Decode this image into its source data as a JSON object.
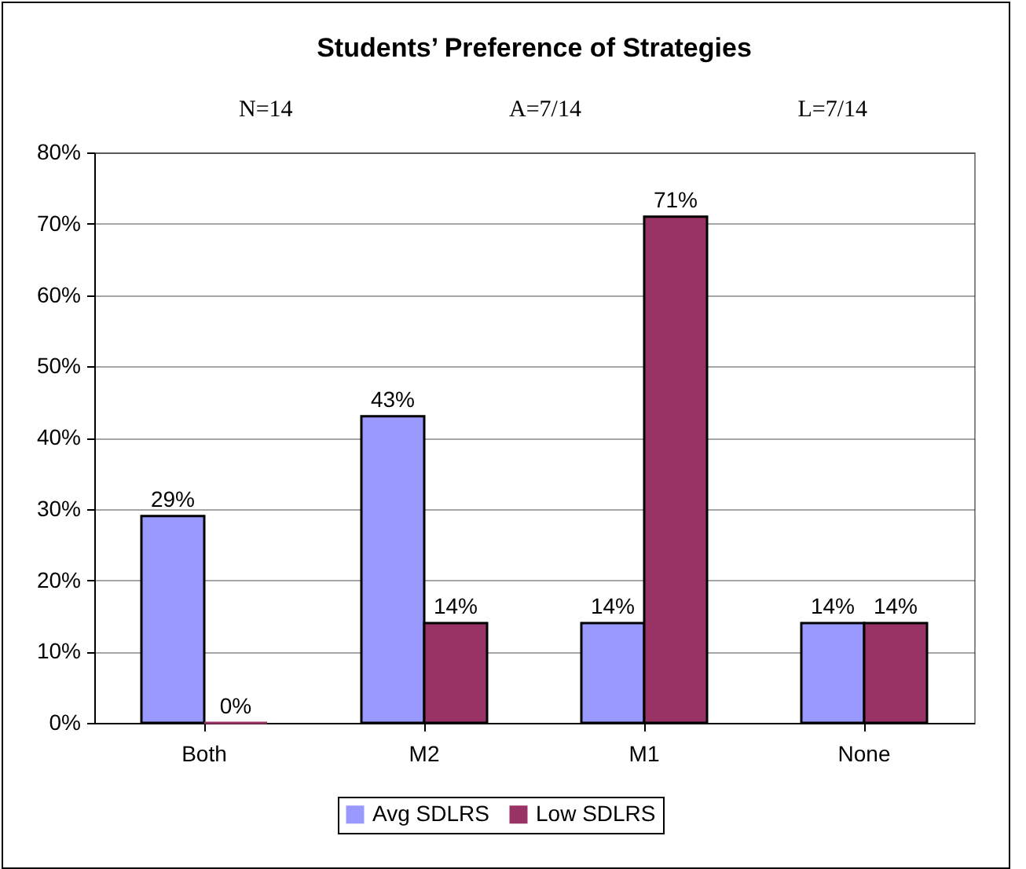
{
  "chart_data": {
    "type": "bar",
    "title": "Students’ Preference of Strategies",
    "annotations": [
      "N=14",
      "A=7/14",
      "L=7/14"
    ],
    "categories": [
      "Both",
      "M2",
      "M1",
      "None"
    ],
    "series": [
      {
        "name": "Avg SDLRS",
        "color": "#9999ff",
        "values": [
          29,
          43,
          14,
          14
        ],
        "value_labels": [
          "29%",
          "43%",
          "14%",
          "14%"
        ]
      },
      {
        "name": "Low SDLRS",
        "color": "#993366",
        "values": [
          0,
          14,
          71,
          14
        ],
        "value_labels": [
          "0%",
          "14%",
          "71%",
          "14%"
        ]
      }
    ],
    "ylim": [
      0,
      80
    ],
    "yticks": [
      {
        "value": 0,
        "label": "0%"
      },
      {
        "value": 10,
        "label": "10%"
      },
      {
        "value": 20,
        "label": "20%"
      },
      {
        "value": 30,
        "label": "30%"
      },
      {
        "value": 40,
        "label": "40%"
      },
      {
        "value": 50,
        "label": "50%"
      },
      {
        "value": 60,
        "label": "60%"
      },
      {
        "value": 70,
        "label": "70%"
      },
      {
        "value": 80,
        "label": "80%"
      }
    ],
    "grid": "y",
    "legend": "bottom"
  }
}
